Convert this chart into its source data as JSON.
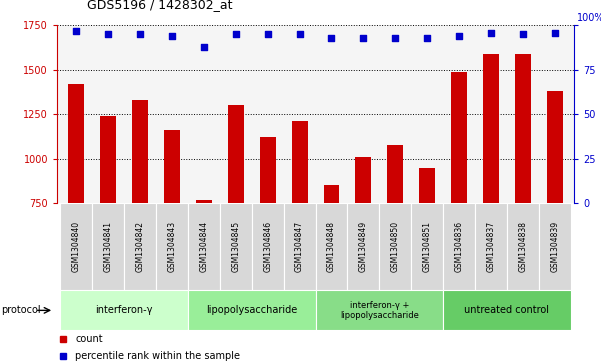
{
  "title": "GDS5196 / 1428302_at",
  "samples": [
    "GSM1304840",
    "GSM1304841",
    "GSM1304842",
    "GSM1304843",
    "GSM1304844",
    "GSM1304845",
    "GSM1304846",
    "GSM1304847",
    "GSM1304848",
    "GSM1304849",
    "GSM1304850",
    "GSM1304851",
    "GSM1304836",
    "GSM1304837",
    "GSM1304838",
    "GSM1304839"
  ],
  "counts": [
    1420,
    1240,
    1330,
    1160,
    770,
    1300,
    1120,
    1210,
    855,
    1010,
    1080,
    950,
    1490,
    1590,
    1590,
    1380
  ],
  "percentiles": [
    97,
    95,
    95,
    94,
    88,
    95,
    95,
    95,
    93,
    93,
    93,
    93,
    94,
    96,
    95,
    96
  ],
  "bar_color": "#cc0000",
  "dot_color": "#0000cc",
  "ylim_left": [
    750,
    1750
  ],
  "ylim_right": [
    0,
    100
  ],
  "yticks_left": [
    750,
    1000,
    1250,
    1500,
    1750
  ],
  "yticks_right": [
    0,
    25,
    50,
    75,
    100
  ],
  "groups": [
    {
      "label": "interferon-γ",
      "start": 0,
      "end": 4,
      "color": "#ccffcc"
    },
    {
      "label": "lipopolysaccharide",
      "start": 4,
      "end": 8,
      "color": "#99ee99"
    },
    {
      "label": "interferon-γ +\nlipopolysaccharide",
      "start": 8,
      "end": 12,
      "color": "#88dd88"
    },
    {
      "label": "untreated control",
      "start": 12,
      "end": 16,
      "color": "#66cc66"
    }
  ],
  "protocol_label": "protocol",
  "legend_count_label": "count",
  "legend_percentile_label": "percentile rank within the sample",
  "bar_width": 0.5,
  "label_area_color": "#d8d8d8",
  "plot_bg_color": "#f5f5f5"
}
